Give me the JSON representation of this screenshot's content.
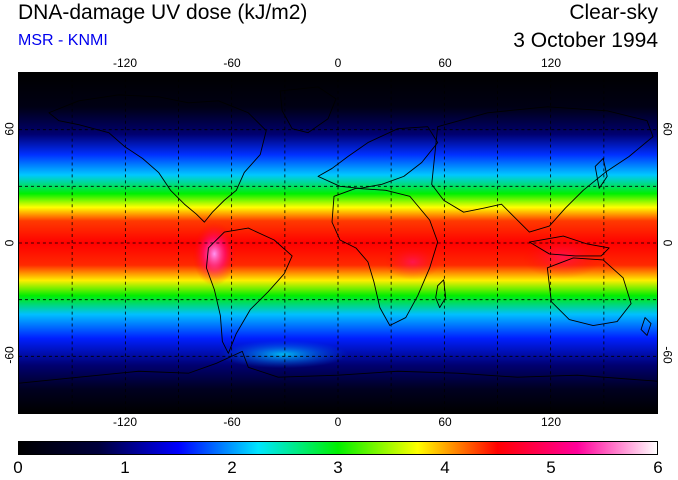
{
  "header": {
    "title": "DNA-damage UV dose (kJ/m2)",
    "subtitle": "MSR - KNMI",
    "kind": "Clear-sky",
    "date": "3 October 1994"
  },
  "map": {
    "projection": "plate-carree",
    "lon_range": [
      -180,
      180
    ],
    "lat_range": [
      -90,
      90
    ],
    "graticule": "dashed",
    "lon_labels": [
      "-120",
      "-60",
      "0",
      "60",
      "120"
    ],
    "lat_labels": [
      "60",
      "0",
      "-60"
    ],
    "colors": {
      "ocean_background": "#000000",
      "coastline": "#000000"
    }
  },
  "colorbar": {
    "min": 0,
    "max": 6,
    "labels": [
      "0",
      "1",
      "2",
      "3",
      "4",
      "5",
      "6"
    ],
    "stops": [
      "#000000",
      "#00003c",
      "#0000ff",
      "#00e6ff",
      "#00f000",
      "#ffff00",
      "#ff0000",
      "#ff009a",
      "#ffffff"
    ]
  }
}
